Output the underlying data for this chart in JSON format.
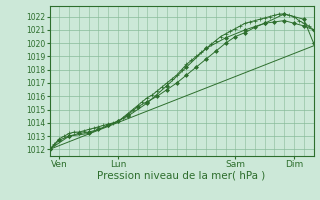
{
  "bg_color": "#cce8d8",
  "grid_color": "#88bb99",
  "line_color": "#2d6e2d",
  "xlabel": "Pression niveau de la mer( hPa )",
  "xlabel_fontsize": 7.5,
  "ytick_fontsize": 5.5,
  "xtick_fontsize": 6.5,
  "yticks": [
    1012,
    1013,
    1014,
    1015,
    1016,
    1017,
    1018,
    1019,
    1020,
    1021,
    1022
  ],
  "ylim": [
    1011.5,
    1022.8
  ],
  "xlim": [
    0,
    108
  ],
  "xtick_positions": [
    4,
    28,
    76,
    100
  ],
  "xtick_labels": [
    "Ven",
    "Lun",
    "Sam",
    "Dim"
  ],
  "vlines": [
    4,
    28,
    76,
    100
  ],
  "minor_vlines_step": 4,
  "series": [
    {
      "x": [
        0,
        2,
        4,
        6,
        8,
        10,
        12,
        14,
        16,
        18,
        20,
        22,
        24,
        26,
        28,
        30,
        32,
        34,
        36,
        38,
        40,
        42,
        44,
        46,
        48,
        50,
        52,
        54,
        56,
        58,
        60,
        62,
        64,
        66,
        68,
        70,
        72,
        74,
        76,
        78,
        80,
        82,
        84,
        86,
        88,
        90,
        92,
        94,
        96,
        98,
        100,
        102,
        104,
        106,
        108
      ],
      "y": [
        1012.0,
        1012.4,
        1012.8,
        1013.0,
        1013.2,
        1013.3,
        1013.3,
        1013.4,
        1013.5,
        1013.6,
        1013.7,
        1013.8,
        1013.9,
        1014.0,
        1014.1,
        1014.4,
        1014.7,
        1015.0,
        1015.3,
        1015.6,
        1015.9,
        1016.1,
        1016.4,
        1016.7,
        1017.0,
        1017.3,
        1017.6,
        1018.0,
        1018.4,
        1018.7,
        1019.0,
        1019.3,
        1019.6,
        1019.9,
        1020.2,
        1020.5,
        1020.7,
        1020.9,
        1021.1,
        1021.3,
        1021.5,
        1021.6,
        1021.7,
        1021.8,
        1021.9,
        1022.0,
        1022.1,
        1022.2,
        1022.2,
        1022.1,
        1022.0,
        1021.7,
        1021.5,
        1021.3,
        1021.0
      ],
      "marker": "+",
      "markersize": 2.5,
      "linewidth": 0.7
    },
    {
      "x": [
        0,
        4,
        8,
        12,
        16,
        20,
        24,
        28,
        32,
        36,
        40,
        44,
        48,
        52,
        56,
        60,
        64,
        68,
        72,
        76,
        80,
        84,
        88,
        92,
        96,
        100,
        104,
        108
      ],
      "y": [
        1012.0,
        1012.7,
        1013.0,
        1013.2,
        1013.3,
        1013.5,
        1013.8,
        1014.1,
        1014.6,
        1015.2,
        1015.6,
        1016.0,
        1016.5,
        1017.0,
        1017.6,
        1018.2,
        1018.8,
        1019.4,
        1020.0,
        1020.5,
        1020.8,
        1021.2,
        1021.5,
        1021.6,
        1021.7,
        1021.5,
        1021.3,
        1021.0
      ],
      "marker": "D",
      "markersize": 2.0,
      "linewidth": 0.7
    },
    {
      "x": [
        0,
        8,
        16,
        24,
        32,
        40,
        48,
        56,
        64,
        72,
        80,
        88,
        96,
        104,
        108
      ],
      "y": [
        1012.0,
        1013.0,
        1013.2,
        1013.8,
        1014.5,
        1015.5,
        1016.8,
        1018.2,
        1019.6,
        1020.4,
        1021.0,
        1021.5,
        1022.2,
        1021.8,
        1020.0
      ],
      "marker": "D",
      "markersize": 2.0,
      "linewidth": 0.7
    },
    {
      "x": [
        0,
        108
      ],
      "y": [
        1012.0,
        1019.8
      ],
      "marker": null,
      "markersize": 0,
      "linewidth": 0.7
    }
  ]
}
